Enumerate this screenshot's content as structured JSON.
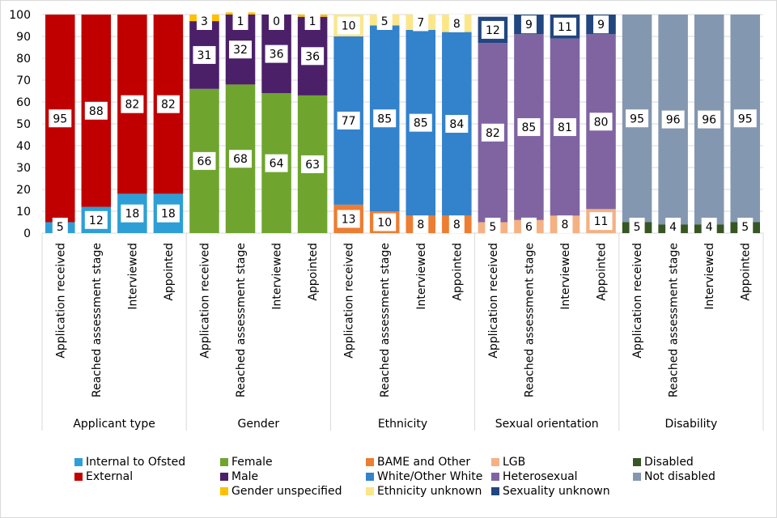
{
  "chart_data": {
    "type": "bar",
    "stacked": true,
    "title": "",
    "xlabel": "",
    "ylabel": "",
    "ylim": [
      0,
      100
    ],
    "yticks": [
      0,
      10,
      20,
      30,
      40,
      50,
      60,
      70,
      80,
      90,
      100
    ],
    "grid": true,
    "legend_position": "bottom",
    "stages": [
      "Application received",
      "Reached assessment stage",
      "Interviewed",
      "Appointed"
    ],
    "groups": [
      {
        "name": "Applicant type",
        "series": [
          {
            "name": "Internal to Ofsted",
            "color": "#2e9fd6",
            "values": [
              5,
              12,
              18,
              18
            ]
          },
          {
            "name": "External",
            "color": "#c00000",
            "values": [
              95,
              88,
              82,
              82
            ]
          }
        ]
      },
      {
        "name": "Gender",
        "series": [
          {
            "name": "Female",
            "color": "#6fa52f",
            "values": [
              66,
              68,
              64,
              63
            ]
          },
          {
            "name": "Male",
            "color": "#4b2069",
            "values": [
              31,
              32,
              36,
              36
            ]
          },
          {
            "name": "Gender unspecified",
            "color": "#ffc000",
            "values": [
              3,
              1,
              0,
              1
            ]
          }
        ]
      },
      {
        "name": "Ethnicity",
        "series": [
          {
            "name": "BAME and Other",
            "color": "#ed7d31",
            "values": [
              13,
              10,
              8,
              8
            ]
          },
          {
            "name": "White/Other White",
            "color": "#3382cc",
            "values": [
              77,
              85,
              85,
              84
            ]
          },
          {
            "name": "Ethnicity unknown",
            "color": "#fbe68a",
            "values": [
              10,
              5,
              7,
              8
            ]
          }
        ]
      },
      {
        "name": "Sexual orientation",
        "series": [
          {
            "name": "LGB",
            "color": "#f4b183",
            "values": [
              5,
              6,
              8,
              11
            ]
          },
          {
            "name": "Heterosexual",
            "color": "#8064a2",
            "values": [
              82,
              85,
              81,
              80
            ]
          },
          {
            "name": "Sexuality unknown",
            "color": "#22467f",
            "values": [
              12,
              9,
              11,
              9
            ]
          }
        ]
      },
      {
        "name": "Disability",
        "series": [
          {
            "name": "Disabled",
            "color": "#375623",
            "values": [
              5,
              4,
              4,
              5
            ]
          },
          {
            "name": "Not disabled",
            "color": "#8497b0",
            "values": [
              95,
              96,
              96,
              95
            ]
          }
        ]
      }
    ]
  },
  "legend": {
    "columns": [
      [
        {
          "label": "Internal to Ofsted",
          "color": "#2e9fd6"
        },
        {
          "label": "External",
          "color": "#c00000"
        }
      ],
      [
        {
          "label": "Female",
          "color": "#6fa52f"
        },
        {
          "label": "Male",
          "color": "#4b2069"
        },
        {
          "label": "Gender unspecified",
          "color": "#ffc000"
        }
      ],
      [
        {
          "label": "BAME and Other",
          "color": "#ed7d31"
        },
        {
          "label": "White/Other White",
          "color": "#3382cc"
        },
        {
          "label": "Ethnicity unknown",
          "color": "#fbe68a"
        }
      ],
      [
        {
          "label": "LGB",
          "color": "#f4b183"
        },
        {
          "label": "Heterosexual",
          "color": "#8064a2"
        },
        {
          "label": "Sexuality unknown",
          "color": "#22467f"
        }
      ],
      [
        {
          "label": "Disabled",
          "color": "#375623"
        },
        {
          "label": "Not disabled",
          "color": "#8497b0"
        }
      ]
    ]
  }
}
